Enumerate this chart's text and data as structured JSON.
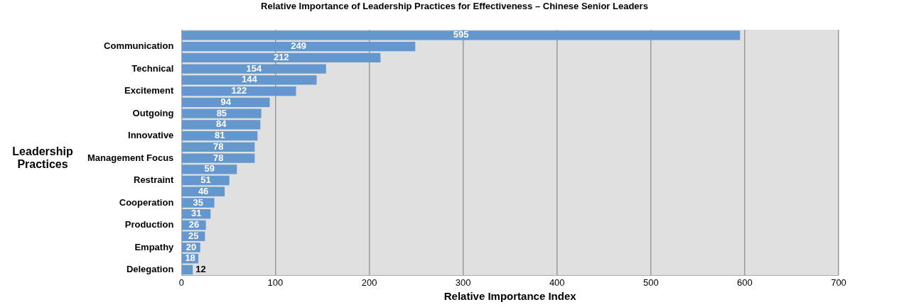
{
  "chart_data": {
    "type": "bar",
    "orientation": "horizontal",
    "title": "Relative Importance of Leadership Practices for Effectiveness – Chinese Senior Leaders",
    "xlabel": "Relative Importance Index",
    "ylabel": "Leadership Practices",
    "categories": [
      null,
      "Communication",
      null,
      "Technical",
      null,
      "Excitement",
      null,
      "Outgoing",
      null,
      "Innovative",
      null,
      "Management Focus",
      null,
      "Restraint",
      null,
      "Cooperation",
      null,
      "Production",
      null,
      "Empathy",
      null,
      "Delegation"
    ],
    "values": [
      595,
      249,
      212,
      154,
      144,
      122,
      94,
      85,
      84,
      81,
      78,
      78,
      59,
      51,
      46,
      35,
      31,
      26,
      25,
      20,
      18,
      12
    ],
    "color": "#6497cd",
    "data_labels": true,
    "xlim": [
      0,
      700
    ],
    "xticks": [
      0,
      100,
      200,
      300,
      400,
      500,
      600,
      700
    ],
    "grid": "x",
    "legend": false
  }
}
